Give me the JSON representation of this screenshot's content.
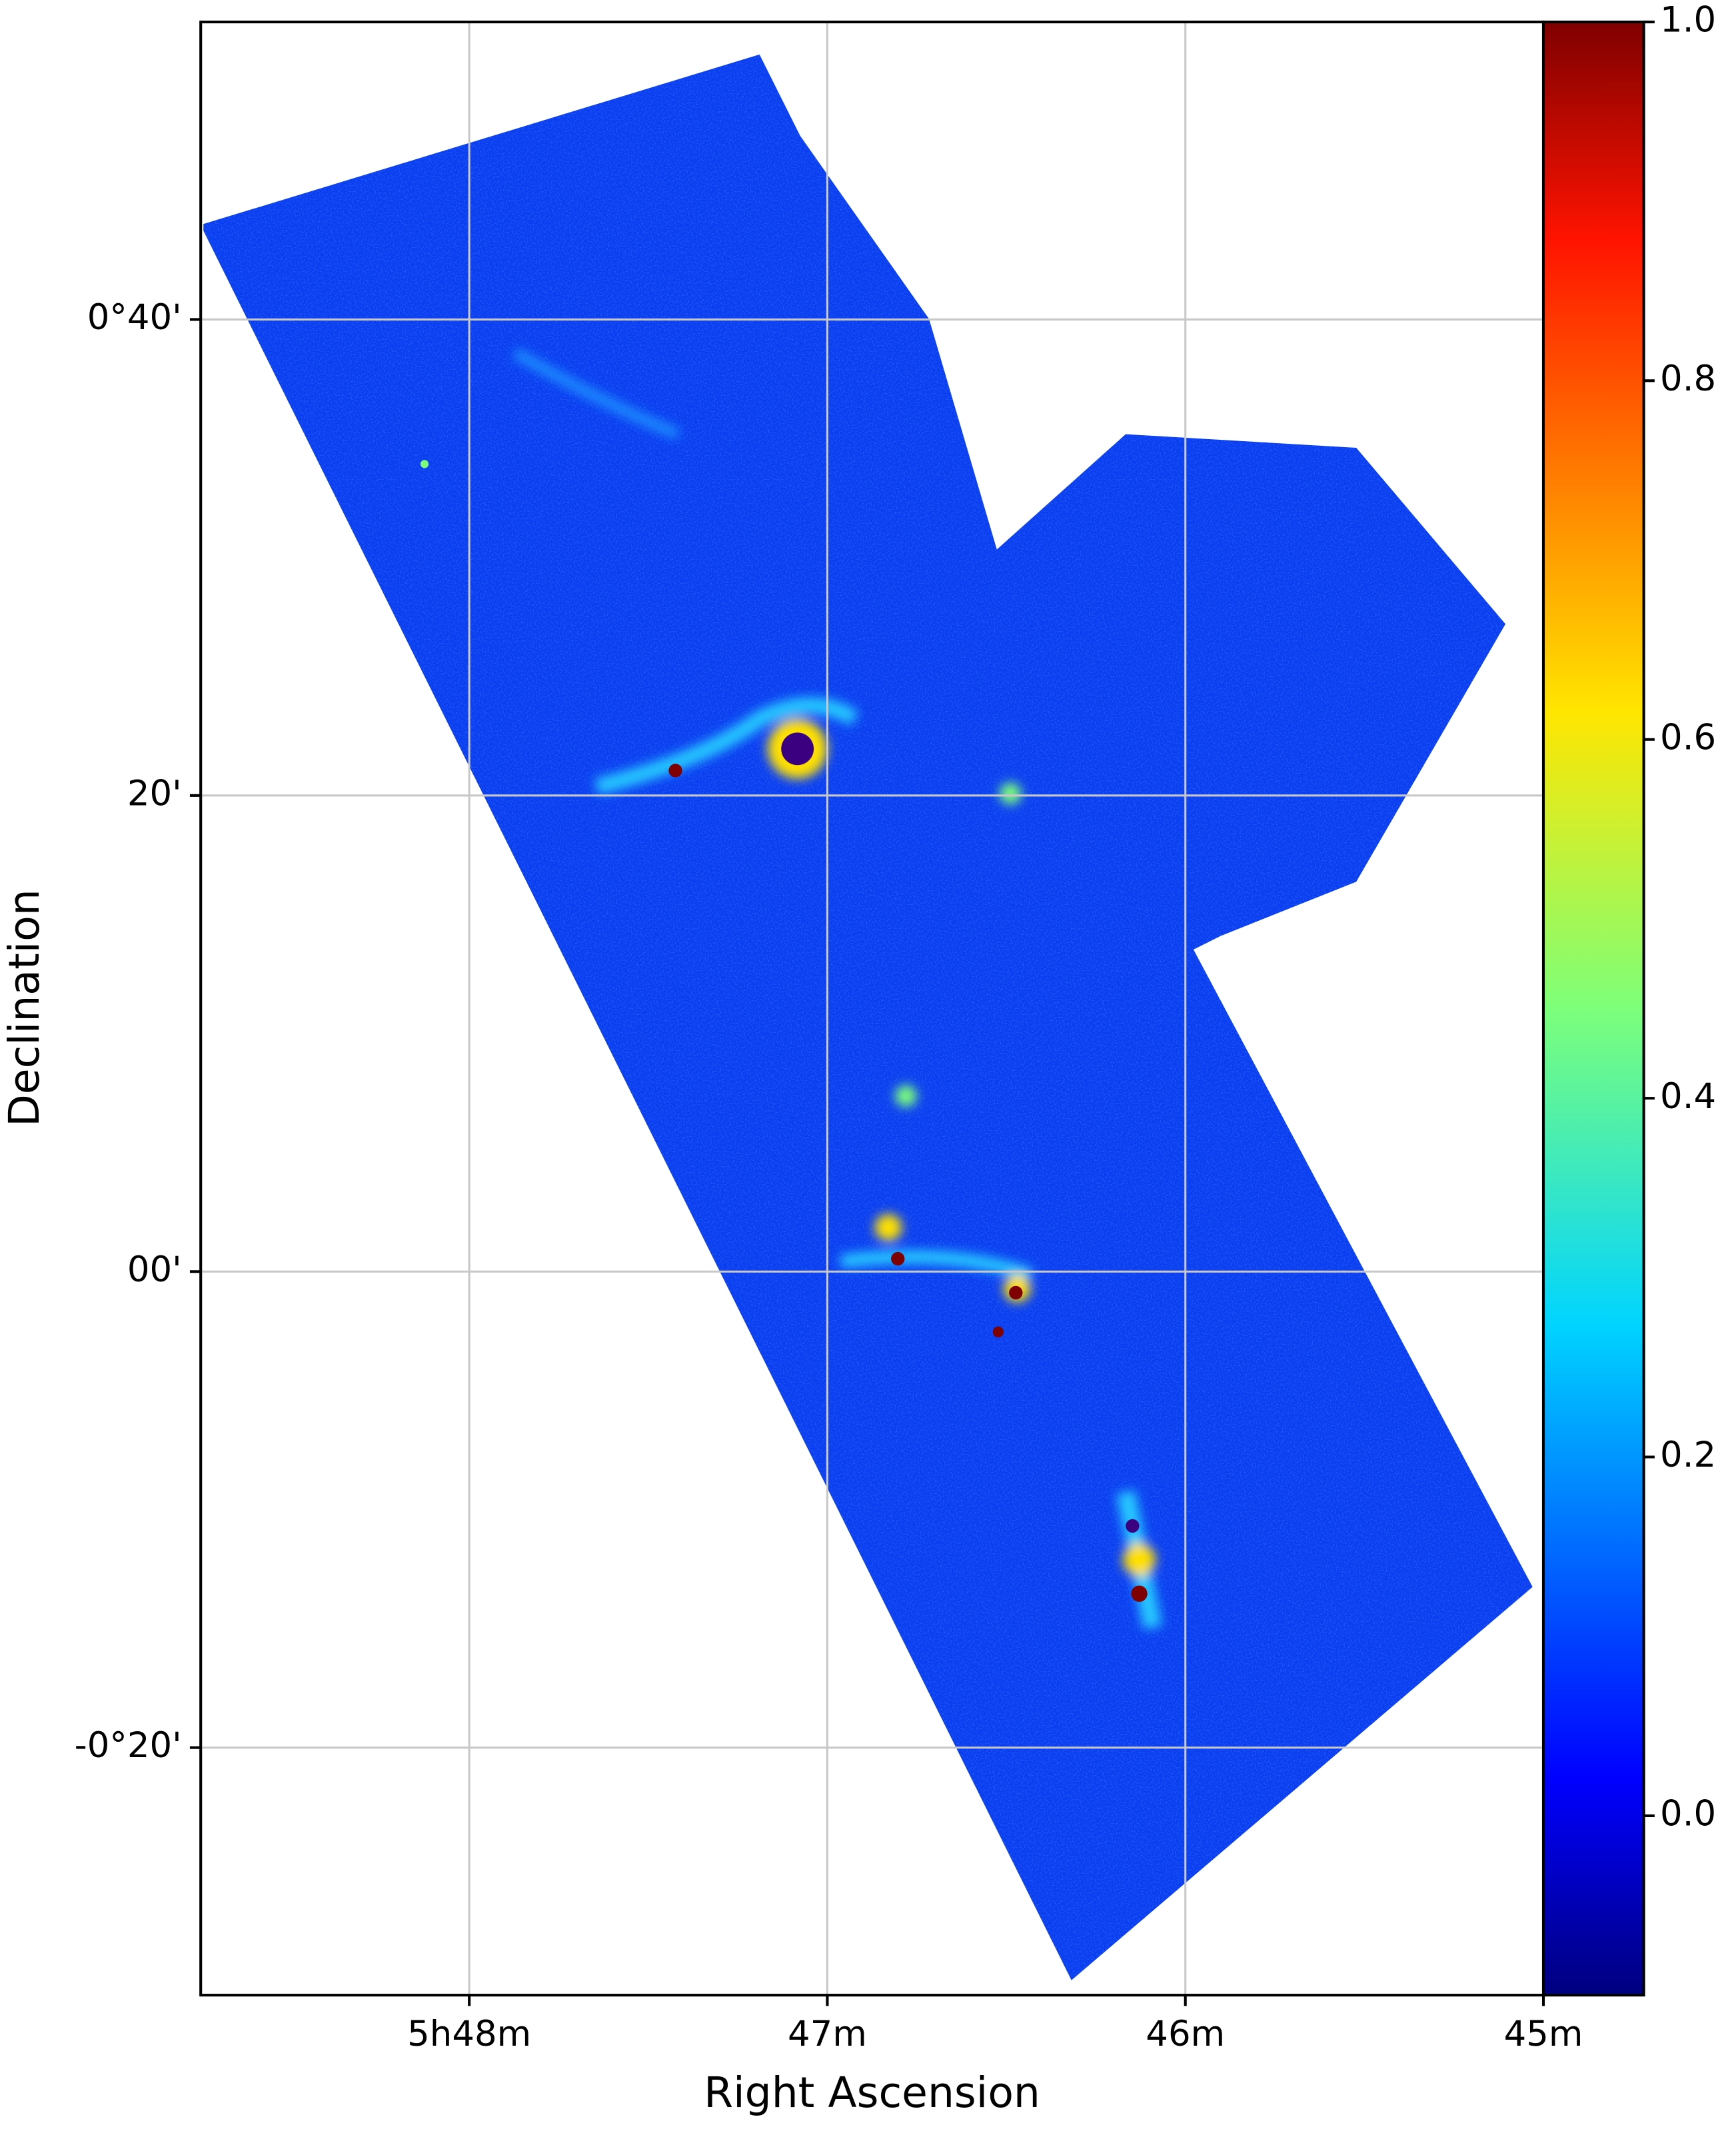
{
  "chart_data": {
    "type": "image",
    "x_label": "Right Ascension",
    "y_label": "Declination",
    "xlim": [
      48.75,
      45
    ],
    "xticks": [
      {
        "value": 48,
        "label": "5h48m"
      },
      {
        "value": 47,
        "label": "47m"
      },
      {
        "value": 46,
        "label": "46m"
      },
      {
        "value": 45,
        "label": "45m"
      }
    ],
    "ylim": [
      -30.4,
      52.5
    ],
    "yticks": [
      {
        "value": 40,
        "label": "0°40'"
      },
      {
        "value": 20,
        "label": "20'"
      },
      {
        "value": 0,
        "label": "00'"
      },
      {
        "value": -20,
        "label": "-0°20'"
      }
    ],
    "grid": true,
    "colormap": "jet",
    "clim": [
      -0.1,
      1.0
    ],
    "cticks": [
      {
        "value": 0,
        "label": "0.0"
      },
      {
        "value": 0.2,
        "label": "0.2"
      },
      {
        "value": 0.4,
        "label": "0.4"
      },
      {
        "value": 0.6,
        "label": "0.6"
      },
      {
        "value": 0.8,
        "label": "0.8"
      },
      {
        "value": 1.0,
        "label": "1.0"
      }
    ]
  }
}
